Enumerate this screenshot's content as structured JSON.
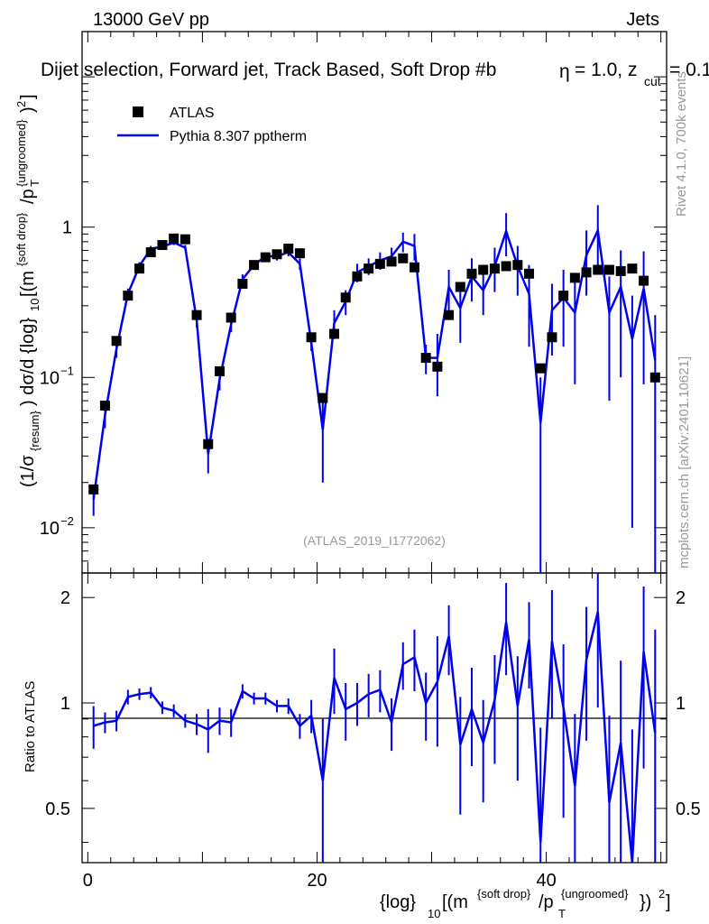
{
  "header": {
    "energy": "13000 GeV pp",
    "category": "Jets"
  },
  "side_labels": {
    "rivet": "Rivet 4.1.0,  700k events",
    "mcplots": "mcplots.cern.ch [arXiv:2401.10621]"
  },
  "chart_data": {
    "type": "scatter",
    "title": "Dijet selection, Forward jet, Track Based, Soft Drop #b",
    "title_tail": "= 1.0, z",
    "title_sub": "cut",
    "title_end": "= 0.1",
    "title_symbol": "η",
    "analysis_id": "(ATLAS_2019_I1772062)",
    "xlabel": {
      "main": "{log}",
      "sub": "10",
      "open": "[(m",
      "sup1": "{soft drop}",
      "slash": "/p",
      "sub2": "T",
      "sup2": "{ungroomed}",
      "close": "})",
      "sup3": "2",
      "end": "]"
    },
    "ylabel_top": "(1/σ_{resum}) dσ/d {log}_10[(m^{soft drop}/p_T^{ungroomed})^2]",
    "ylabel_bottom": "Ratio to ATLAS",
    "xlim": [
      -0.5,
      50.5
    ],
    "ylim_top": [
      0.005,
      20
    ],
    "ylim_bottom": [
      0.35,
      2.35
    ],
    "x_ticks": [
      0,
      20,
      40
    ],
    "x_tick_labels": [
      "0",
      "20",
      "40"
    ],
    "y_ticks_top_labels": [
      "10^-2",
      "10^-1",
      "1"
    ],
    "y_ticks_bottom": [
      0.5,
      1,
      2
    ],
    "y_ticks_bottom_labels": [
      "0.5",
      "1",
      "2"
    ],
    "legend": [
      {
        "name": "ATLAS",
        "marker": "square",
        "color": "#000000"
      },
      {
        "name": "Pythia 8.307 pptherm",
        "marker": "line",
        "color": "#0000ee"
      }
    ],
    "x": [
      0.5,
      1.5,
      2.5,
      3.5,
      4.5,
      5.5,
      6.5,
      7.5,
      8.5,
      9.5,
      10.5,
      11.5,
      12.5,
      13.5,
      14.5,
      15.5,
      16.5,
      17.5,
      18.5,
      19.5,
      20.5,
      21.5,
      22.5,
      23.5,
      24.5,
      25.5,
      26.5,
      27.5,
      28.5,
      29.5,
      30.5,
      31.5,
      32.5,
      33.5,
      34.5,
      35.5,
      36.5,
      37.5,
      38.5,
      39.5,
      40.5,
      41.5,
      42.5,
      43.5,
      44.5,
      45.5,
      46.5,
      47.5,
      48.5,
      49.5
    ],
    "series": [
      {
        "name": "ATLAS",
        "values": [
          0.018,
          0.065,
          0.175,
          0.35,
          0.53,
          0.68,
          0.76,
          0.84,
          0.83,
          0.26,
          0.036,
          0.11,
          0.25,
          0.42,
          0.56,
          0.63,
          0.66,
          0.72,
          0.67,
          0.185,
          0.073,
          0.195,
          0.34,
          0.47,
          0.53,
          0.57,
          0.59,
          0.62,
          0.54,
          0.135,
          0.118,
          0.26,
          0.4,
          0.49,
          0.52,
          0.53,
          0.55,
          0.56,
          0.49,
          0.115,
          0.185,
          0.35,
          0.46,
          0.5,
          0.52,
          0.52,
          0.51,
          0.53,
          0.44,
          0.1
        ]
      },
      {
        "name": "Pythia 8.307 pptherm",
        "values": [
          0.0155,
          0.056,
          0.155,
          0.36,
          0.55,
          0.72,
          0.74,
          0.79,
          0.73,
          0.24,
          0.031,
          0.097,
          0.225,
          0.45,
          0.56,
          0.64,
          0.64,
          0.68,
          0.57,
          0.17,
          0.045,
          0.23,
          0.32,
          0.5,
          0.55,
          0.6,
          0.64,
          0.8,
          0.75,
          0.135,
          0.135,
          0.4,
          0.29,
          0.47,
          0.38,
          0.55,
          0.94,
          0.55,
          0.36,
          0.05,
          0.28,
          0.34,
          0.27,
          0.65,
          0.95,
          0.27,
          0.4,
          0.18,
          0.39,
          0.13
        ],
        "err_low": [
          0.0035,
          0.01,
          0.02,
          0.03,
          0.035,
          0.03,
          0.03,
          0.03,
          0.03,
          0.025,
          0.008,
          0.015,
          0.025,
          0.035,
          0.04,
          0.04,
          0.04,
          0.04,
          0.05,
          0.02,
          0.025,
          0.05,
          0.06,
          0.07,
          0.07,
          0.08,
          0.09,
          0.12,
          0.15,
          0.03,
          0.06,
          0.12,
          0.12,
          0.15,
          0.12,
          0.18,
          0.3,
          0.2,
          0.2,
          0.05,
          0.14,
          0.18,
          0.18,
          0.3,
          0.45,
          0.2,
          0.3,
          0.17,
          0.3,
          0.13
        ],
        "err_high": [
          0.0035,
          0.01,
          0.02,
          0.03,
          0.035,
          0.03,
          0.03,
          0.03,
          0.03,
          0.025,
          0.008,
          0.015,
          0.025,
          0.035,
          0.04,
          0.04,
          0.04,
          0.04,
          0.05,
          0.02,
          0.025,
          0.05,
          0.06,
          0.07,
          0.07,
          0.08,
          0.09,
          0.12,
          0.15,
          0.03,
          0.06,
          0.12,
          0.12,
          0.15,
          0.12,
          0.18,
          0.3,
          0.2,
          0.2,
          0.05,
          0.14,
          0.18,
          0.18,
          0.3,
          0.45,
          0.2,
          0.3,
          0.17,
          0.3,
          0.13
        ]
      }
    ],
    "ratio": {
      "name": "Pythia 8.307 pptherm / ATLAS",
      "values": [
        0.86,
        0.88,
        0.89,
        1.04,
        1.06,
        1.07,
        0.97,
        0.95,
        0.89,
        0.87,
        0.84,
        0.89,
        0.88,
        1.08,
        1.03,
        1.03,
        0.98,
        0.98,
        0.86,
        0.92,
        0.6,
        1.18,
        0.96,
        1.0,
        1.06,
        1.09,
        0.88,
        1.29,
        1.35,
        1.0,
        1.15,
        1.55,
        0.76,
        0.96,
        0.77,
        1.02,
        1.7,
        0.98,
        1.52,
        0.4,
        1.5,
        0.97,
        0.58,
        1.33,
        1.82,
        0.52,
        0.77,
        0.34,
        1.4,
        0.82
      ],
      "err_low": [
        0.12,
        0.06,
        0.06,
        0.05,
        0.04,
        0.04,
        0.04,
        0.04,
        0.04,
        0.06,
        0.12,
        0.08,
        0.08,
        0.05,
        0.04,
        0.04,
        0.04,
        0.05,
        0.07,
        0.1,
        0.3,
        0.25,
        0.18,
        0.14,
        0.15,
        0.15,
        0.15,
        0.2,
        0.27,
        0.22,
        0.4,
        0.35,
        0.28,
        0.3,
        0.25,
        0.35,
        0.5,
        0.38,
        0.42,
        0.45,
        0.6,
        0.5,
        0.35,
        0.55,
        0.85,
        0.4,
        0.55,
        0.5,
        0.75,
        0.8
      ],
      "err_high": [
        0.12,
        0.06,
        0.06,
        0.05,
        0.04,
        0.04,
        0.04,
        0.04,
        0.04,
        0.06,
        0.12,
        0.08,
        0.08,
        0.05,
        0.04,
        0.04,
        0.04,
        0.05,
        0.07,
        0.1,
        0.3,
        0.25,
        0.18,
        0.14,
        0.15,
        0.15,
        0.15,
        0.2,
        0.27,
        0.22,
        0.4,
        0.35,
        0.28,
        0.3,
        0.25,
        0.35,
        0.5,
        0.38,
        0.42,
        0.45,
        0.6,
        0.5,
        0.35,
        0.55,
        0.85,
        0.4,
        0.55,
        0.5,
        0.75,
        0.8
      ]
    },
    "colors": {
      "data": "#000000",
      "mc": "#0000ee",
      "annotation": "#999999"
    }
  }
}
